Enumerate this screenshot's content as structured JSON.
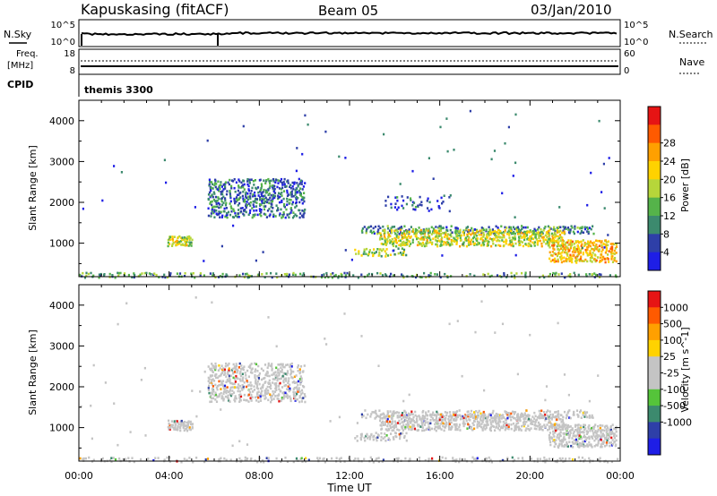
{
  "header": {
    "station": "Kapuskasing (fitACF)",
    "beam": "Beam 05",
    "date": "03/Jan/2010"
  },
  "noise_panel": {
    "left_label": "N.Sky",
    "right_label": "N.Search",
    "left_ticks": [
      "10^5",
      "10^0"
    ],
    "right_ticks": [
      "10^5",
      "10^0"
    ]
  },
  "freq_panel": {
    "left_label_line1": "Freq.",
    "left_label_line2": "[MHz]",
    "right_label": "Nave",
    "left_ticks": [
      "18",
      "8"
    ],
    "right_ticks": [
      "60",
      "0"
    ]
  },
  "cpid": {
    "label": "CPID",
    "program": "themis 3300"
  },
  "x_axis": {
    "title": "Time UT",
    "ticks": [
      "00:00",
      "04:00",
      "08:00",
      "12:00",
      "16:00",
      "20:00",
      "00:00"
    ]
  },
  "y_axis": {
    "title": "Slant Range [km]",
    "ticks": [
      "1000",
      "2000",
      "3000",
      "4000"
    ]
  },
  "colors": {
    "power": [
      "#1e1ee6",
      "#2e3fa8",
      "#3c8a6e",
      "#55b34a",
      "#b6d63a",
      "#ffd200",
      "#ffa000",
      "#ff5a00",
      "#e61414"
    ],
    "velocity": [
      "#1e1ee6",
      "#2e3fa8",
      "#3c8a6e",
      "#55c43a",
      "#c4c4c4",
      "#c4c4c4",
      "#ffd200",
      "#ffa000",
      "#ff5a00",
      "#e61414"
    ]
  },
  "chart_data": [
    {
      "type": "heatmap",
      "title": "Power",
      "colorbar_label": "Power [dB]",
      "colorbar_ticks": [
        "4",
        "8",
        "12",
        "16",
        "20",
        "24",
        "28"
      ],
      "xlabel": "Time UT",
      "ylabel": "Slant Range [km]",
      "xlim": [
        0,
        24
      ],
      "ylim": [
        180,
        4500
      ],
      "regions": [
        {
          "t": [
            0,
            24
          ],
          "r": [
            180,
            300
          ],
          "value": 12,
          "density": 0.3
        },
        {
          "t": [
            3.9,
            5.0
          ],
          "r": [
            950,
            1200
          ],
          "value": 18,
          "density": 0.9
        },
        {
          "t": [
            5.7,
            10.0
          ],
          "r": [
            1650,
            2600
          ],
          "value": 8,
          "density": 0.55
        },
        {
          "t": [
            12.5,
            22.8
          ],
          "r": [
            1250,
            1450
          ],
          "value": 10,
          "density": 0.55
        },
        {
          "t": [
            13.3,
            21.5
          ],
          "r": [
            950,
            1350
          ],
          "value": 19,
          "density": 0.7
        },
        {
          "t": [
            12.2,
            14.5
          ],
          "r": [
            700,
            900
          ],
          "value": 17,
          "density": 0.6
        },
        {
          "t": [
            20.8,
            23.8
          ],
          "r": [
            550,
            1100
          ],
          "value": 23,
          "density": 0.75
        },
        {
          "t": [
            13.5,
            16.5
          ],
          "r": [
            1800,
            2200
          ],
          "value": 6,
          "density": 0.2
        }
      ]
    },
    {
      "type": "heatmap",
      "title": "Velocity",
      "colorbar_label": "Velocity [m s^-1]",
      "colorbar_ticks": [
        "1000",
        "500",
        "100",
        "25",
        "-25",
        "-100",
        "-500",
        "-1000"
      ],
      "xlabel": "Time UT",
      "ylabel": "Slant Range [km]",
      "xlim": [
        0,
        24
      ],
      "ylim": [
        180,
        4500
      ],
      "regions": [
        {
          "t": [
            0,
            24
          ],
          "r": [
            180,
            300
          ],
          "value": 0,
          "density": 0.3
        },
        {
          "t": [
            3.9,
            5.0
          ],
          "r": [
            950,
            1200
          ],
          "value": -60,
          "density": 0.9
        },
        {
          "t": [
            5.7,
            10.0
          ],
          "r": [
            1650,
            2600
          ],
          "value": 0,
          "density": 0.55
        },
        {
          "t": [
            12.5,
            22.8
          ],
          "r": [
            1250,
            1450
          ],
          "value": 0,
          "density": 0.55
        },
        {
          "t": [
            13.3,
            21.5
          ],
          "r": [
            950,
            1350
          ],
          "value": 0,
          "density": 0.7
        },
        {
          "t": [
            12.2,
            14.5
          ],
          "r": [
            700,
            900
          ],
          "value": 0,
          "density": 0.6
        },
        {
          "t": [
            20.8,
            23.8
          ],
          "r": [
            550,
            1100
          ],
          "value": 0,
          "density": 0.75
        }
      ]
    }
  ]
}
